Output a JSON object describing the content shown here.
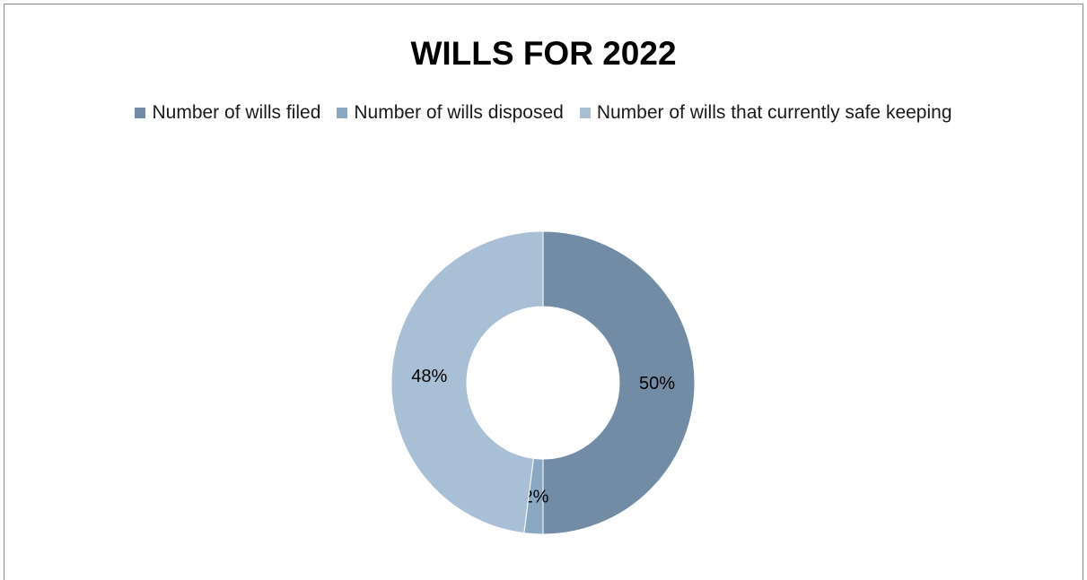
{
  "chart_data": {
    "type": "pie",
    "variant": "donut",
    "title": "WILLS FOR 2022",
    "categories": [
      "Number of wills filed",
      "Number of wills disposed",
      "Number of wills that currently safe keeping"
    ],
    "values": [
      50,
      2,
      48
    ],
    "data_labels": [
      "50%",
      "2%",
      "48%"
    ],
    "colors": [
      "#738ca6",
      "#8aa8c2",
      "#a9bfd6"
    ],
    "legend_position": "top",
    "start_angle_deg": 0,
    "direction": "clockwise"
  }
}
